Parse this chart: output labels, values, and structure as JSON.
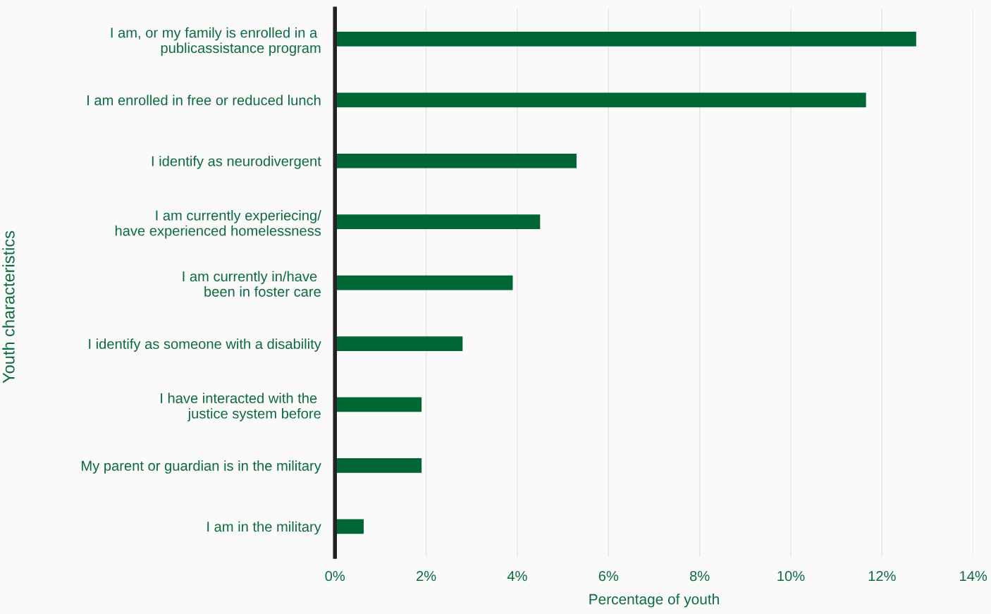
{
  "chart_data": {
    "type": "bar",
    "orientation": "horizontal",
    "xlabel": "Percentage of youth",
    "ylabel": "Youth characteristics",
    "categories": [
      "I am, or my family is enrolled in a \npublicassistance program",
      "I am enrolled in free or reduced lunch",
      "I identify as neurodivergent",
      "I am currently experiecing/\nhave experienced homelessness",
      "I am currently in/have \nbeen in foster care",
      "I identify as someone with a disability",
      "I have interacted with the \njustice system before",
      "My parent or guardian is in the military",
      "I am in the military"
    ],
    "values": [
      12.75,
      11.65,
      5.3,
      4.5,
      3.9,
      2.8,
      1.9,
      1.9,
      0.63
    ],
    "color": "#006633",
    "xlim": [
      0,
      14
    ],
    "xticks": [
      {
        "value": 0,
        "label": "0%"
      },
      {
        "value": 2,
        "label": "2%"
      },
      {
        "value": 4,
        "label": "4%"
      },
      {
        "value": 6,
        "label": "6%"
      },
      {
        "value": 8,
        "label": "8%"
      },
      {
        "value": 10,
        "label": "10%"
      },
      {
        "value": 12,
        "label": "12%"
      },
      {
        "value": 14,
        "label": "14%"
      }
    ],
    "grid": "x"
  }
}
